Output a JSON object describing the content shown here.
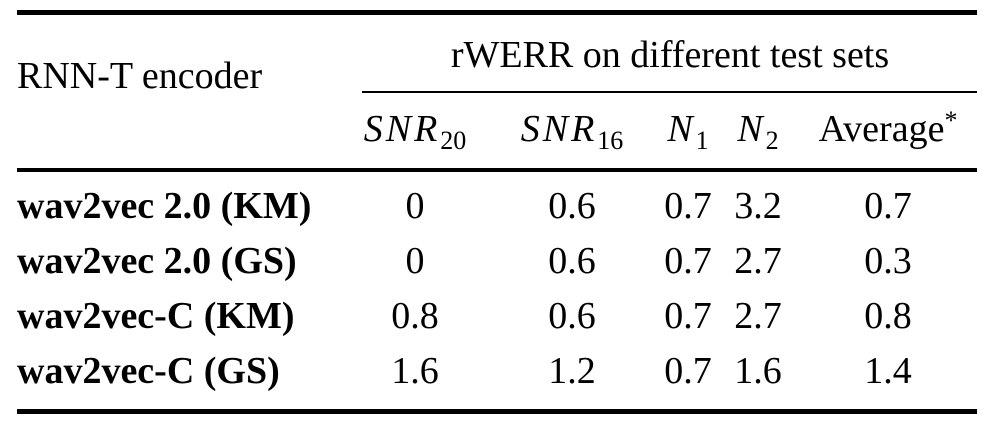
{
  "table": {
    "encoder_header": "RNN-T encoder",
    "group_header": "rWERR on different test sets",
    "columns": [
      {
        "base": "SNR",
        "sub": "20"
      },
      {
        "base": "SNR",
        "sub": "16"
      },
      {
        "base": "N",
        "sub": "1"
      },
      {
        "base": "N",
        "sub": "2"
      },
      {
        "base": "Average",
        "sup": "*"
      }
    ],
    "rows": [
      {
        "label": "wav2vec 2.0 (KM)",
        "values": [
          "0",
          "0.6",
          "0.7",
          "3.2",
          "0.7"
        ]
      },
      {
        "label": "wav2vec 2.0 (GS)",
        "values": [
          "0",
          "0.6",
          "0.7",
          "2.7",
          "0.3"
        ]
      },
      {
        "label": "wav2vec-C (KM)",
        "values": [
          "0.8",
          "0.6",
          "0.7",
          "2.7",
          "0.8"
        ]
      },
      {
        "label": "wav2vec-C (GS)",
        "values": [
          "1.6",
          "1.2",
          "0.7",
          "1.6",
          "1.4"
        ]
      }
    ]
  },
  "colors": {
    "text": "#000000",
    "rule": "#000000",
    "background": "#ffffff"
  },
  "chart_data": {
    "type": "table",
    "title": "rWERR on different test sets",
    "row_header_column": "RNN-T encoder",
    "columns": [
      "SNR_20",
      "SNR_16",
      "N_1",
      "N_2",
      "Average*"
    ],
    "rows": [
      {
        "label": "wav2vec 2.0 (KM)",
        "values": [
          0,
          0.6,
          0.7,
          3.2,
          0.7
        ]
      },
      {
        "label": "wav2vec 2.0 (GS)",
        "values": [
          0,
          0.6,
          0.7,
          2.7,
          0.3
        ]
      },
      {
        "label": "wav2vec-C (KM)",
        "values": [
          0.8,
          0.6,
          0.7,
          2.7,
          0.8
        ]
      },
      {
        "label": "wav2vec-C (GS)",
        "values": [
          1.6,
          1.2,
          0.7,
          1.6,
          1.4
        ]
      }
    ]
  }
}
